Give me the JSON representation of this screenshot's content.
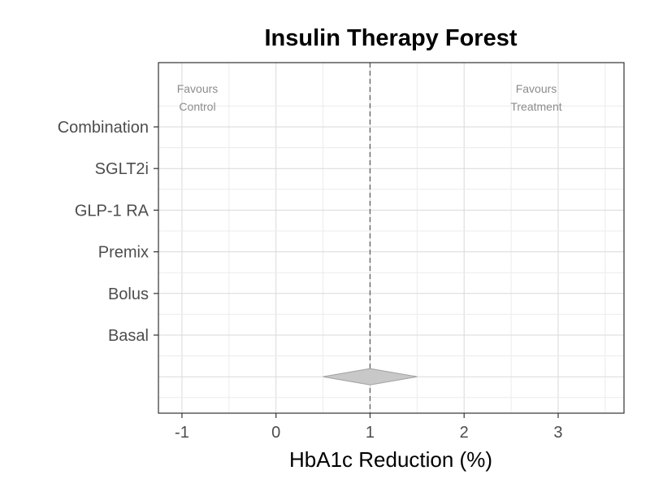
{
  "chart_data": {
    "type": "forest",
    "title": "Insulin Therapy Forest",
    "xlabel": "HbA1c Reduction (%)",
    "ylabel": "",
    "xlim": [
      -1.25,
      3.7
    ],
    "x_ticks": [
      -1,
      0,
      1,
      2,
      3
    ],
    "x_tick_labels": [
      "-1",
      "0",
      "1",
      "2",
      "3"
    ],
    "reference_line": 1,
    "categories": [
      "Combination",
      "SGLT2i",
      "GLP-1 RA",
      "Premix",
      "Bolus",
      "Basal"
    ],
    "studies": [],
    "summary": {
      "estimate": 1.0,
      "lower": 0.5,
      "upper": 1.5
    },
    "annotations": {
      "left": [
        "Favours",
        "Control"
      ],
      "right": [
        "Favours",
        "Treatment"
      ]
    },
    "grid": true,
    "colors": {
      "summary_fill": "#c8c8c8",
      "summary_stroke": "#a6a6a6",
      "reference_line": "#666666",
      "grid_major": "#d9d9d9",
      "grid_minor": "#ececec",
      "panel_border": "#333333"
    }
  }
}
